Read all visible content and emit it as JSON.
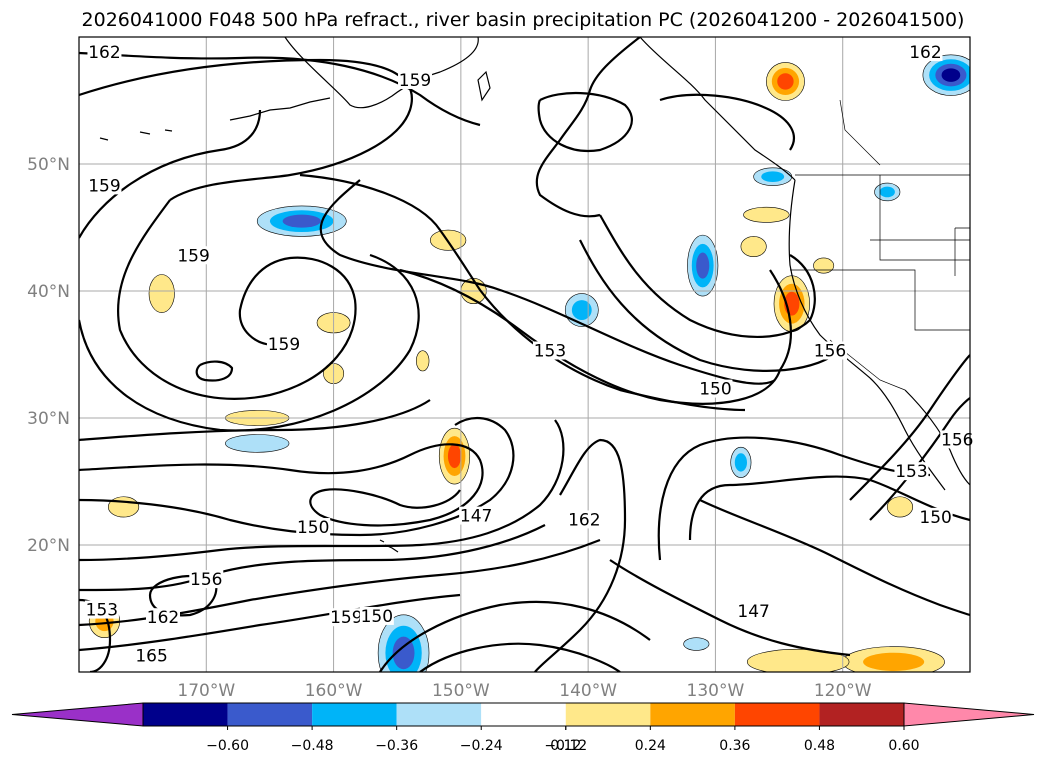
{
  "chart_data": {
    "type": "map-contour",
    "title": "2026041000 F048 500 hPa refract., river basin precipitation PC (2026041200 - 2026041500)",
    "longitude_range": [
      -180,
      -110
    ],
    "latitude_range": [
      10,
      60
    ],
    "longitude_ticks": [
      {
        "value": -170,
        "label": "170°W"
      },
      {
        "value": -160,
        "label": "160°W"
      },
      {
        "value": -150,
        "label": "150°W"
      },
      {
        "value": -140,
        "label": "140°W"
      },
      {
        "value": -130,
        "label": "130°W"
      },
      {
        "value": -120,
        "label": "120°W"
      }
    ],
    "latitude_ticks": [
      {
        "value": 20,
        "label": "20°N"
      },
      {
        "value": 30,
        "label": "30°N"
      },
      {
        "value": 40,
        "label": "40°N"
      },
      {
        "value": 50,
        "label": "50°N"
      }
    ],
    "contour_labels": [
      {
        "text": "162",
        "lon": -178.0,
        "lat": 58.5
      },
      {
        "text": "159",
        "lon": -153.6,
        "lat": 56.3
      },
      {
        "text": "159",
        "lon": -178.0,
        "lat": 48.0
      },
      {
        "text": "159",
        "lon": -171.0,
        "lat": 42.5
      },
      {
        "text": "159",
        "lon": -163.9,
        "lat": 35.5
      },
      {
        "text": "153",
        "lon": -143.0,
        "lat": 35.0
      },
      {
        "text": "150",
        "lon": -130.0,
        "lat": 32.0
      },
      {
        "text": "156",
        "lon": -121.0,
        "lat": 35.0
      },
      {
        "text": "153",
        "lon": -114.6,
        "lat": 25.5
      },
      {
        "text": "156",
        "lon": -111.0,
        "lat": 28.0
      },
      {
        "text": "150",
        "lon": -112.7,
        "lat": 21.9
      },
      {
        "text": "147",
        "lon": -148.8,
        "lat": 22.0
      },
      {
        "text": "162",
        "lon": -140.3,
        "lat": 21.7
      },
      {
        "text": "150",
        "lon": -161.6,
        "lat": 21.1
      },
      {
        "text": "156",
        "lon": -170.0,
        "lat": 17.0
      },
      {
        "text": "162",
        "lon": -173.4,
        "lat": 14.0
      },
      {
        "text": "165",
        "lon": -174.3,
        "lat": 11.0
      },
      {
        "text": "153",
        "lon": -178.2,
        "lat": 14.6
      },
      {
        "text": "159",
        "lon": -159.0,
        "lat": 14.0
      },
      {
        "text": "150",
        "lon": -156.6,
        "lat": 14.1
      },
      {
        "text": "147",
        "lon": -127.0,
        "lat": 14.5
      },
      {
        "text": "162",
        "lon": -113.5,
        "lat": 58.5
      }
    ],
    "colorbar": {
      "ticks": [
        "−0.60",
        "−0.48",
        "−0.36",
        "−0.24",
        "−0.12",
        "0.12",
        "0.24",
        "0.36",
        "0.48",
        "0.60"
      ],
      "extend": "both",
      "under_color": "#9a30c8",
      "over_color": "#ff88aa",
      "bins": [
        {
          "from": -0.6,
          "to": -0.48,
          "color": "#00008b"
        },
        {
          "from": -0.48,
          "to": -0.36,
          "color": "#3a5acc"
        },
        {
          "from": -0.36,
          "to": -0.24,
          "color": "#00b4f8"
        },
        {
          "from": -0.24,
          "to": -0.12,
          "color": "#aee0f8"
        },
        {
          "from": -0.12,
          "to": 0.12,
          "color": "#ffffff"
        },
        {
          "from": 0.12,
          "to": 0.24,
          "color": "#ffe88a"
        },
        {
          "from": 0.24,
          "to": 0.36,
          "color": "#ffa500"
        },
        {
          "from": 0.36,
          "to": 0.48,
          "color": "#ff4500"
        },
        {
          "from": 0.48,
          "to": 0.6,
          "color": "#b22222"
        }
      ]
    },
    "precip_blobs": [
      {
        "lon": -162.5,
        "lat": 45.5,
        "rx": 3.5,
        "ry": 1.2,
        "cls": -0.48
      },
      {
        "lon": -154.5,
        "lat": 11.5,
        "rx": 2.0,
        "ry": 3.0,
        "cls": -0.48
      },
      {
        "lon": -131.0,
        "lat": 42.0,
        "rx": 1.2,
        "ry": 2.4,
        "cls": -0.48
      },
      {
        "lon": -111.5,
        "lat": 57.0,
        "rx": 2.2,
        "ry": 1.6,
        "cls": -0.6
      },
      {
        "lon": -166.0,
        "lat": 28.0,
        "rx": 2.5,
        "ry": 0.7,
        "cls": -0.24
      },
      {
        "lon": -140.5,
        "lat": 38.5,
        "rx": 1.3,
        "ry": 1.3,
        "cls": -0.36
      },
      {
        "lon": -125.5,
        "lat": 49.0,
        "rx": 1.5,
        "ry": 0.7,
        "cls": -0.36
      },
      {
        "lon": -116.5,
        "lat": 47.8,
        "rx": 1.0,
        "ry": 0.7,
        "cls": -0.36
      },
      {
        "lon": -128.0,
        "lat": 26.5,
        "rx": 0.8,
        "ry": 1.2,
        "cls": -0.36
      },
      {
        "lon": -131.5,
        "lat": 12.2,
        "rx": 1.0,
        "ry": 0.5,
        "cls": -0.24
      },
      {
        "lon": -124.5,
        "lat": 56.5,
        "rx": 1.5,
        "ry": 1.5,
        "cls": 0.48
      },
      {
        "lon": -124.0,
        "lat": 39.0,
        "rx": 1.4,
        "ry": 2.2,
        "cls": 0.48
      },
      {
        "lon": -150.5,
        "lat": 27.0,
        "rx": 1.2,
        "ry": 2.2,
        "cls": 0.48
      },
      {
        "lon": -116.0,
        "lat": 10.8,
        "rx": 4.0,
        "ry": 1.2,
        "cls": 0.36
      },
      {
        "lon": -173.5,
        "lat": 39.8,
        "rx": 1.0,
        "ry": 1.5,
        "cls": 0.24
      },
      {
        "lon": -176.5,
        "lat": 23.0,
        "rx": 1.2,
        "ry": 0.8,
        "cls": 0.24
      },
      {
        "lon": -178.0,
        "lat": 14.0,
        "rx": 1.2,
        "ry": 1.3,
        "cls": 0.36
      },
      {
        "lon": -166.0,
        "lat": 30.0,
        "rx": 2.5,
        "ry": 0.6,
        "cls": 0.24
      },
      {
        "lon": -151.0,
        "lat": 44.0,
        "rx": 1.4,
        "ry": 0.8,
        "cls": 0.24
      },
      {
        "lon": -149.0,
        "lat": 40.0,
        "rx": 1.0,
        "ry": 1.0,
        "cls": 0.24
      },
      {
        "lon": -160.0,
        "lat": 37.5,
        "rx": 1.3,
        "ry": 0.8,
        "cls": 0.24
      },
      {
        "lon": -160.0,
        "lat": 33.5,
        "rx": 0.8,
        "ry": 0.8,
        "cls": 0.24
      },
      {
        "lon": -126.0,
        "lat": 46.0,
        "rx": 1.8,
        "ry": 0.6,
        "cls": 0.24
      },
      {
        "lon": -127.0,
        "lat": 43.5,
        "rx": 1.0,
        "ry": 0.8,
        "cls": 0.24
      },
      {
        "lon": -121.5,
        "lat": 42.0,
        "rx": 0.8,
        "ry": 0.6,
        "cls": 0.24
      },
      {
        "lon": -123.5,
        "lat": 10.8,
        "rx": 4.0,
        "ry": 1.0,
        "cls": 0.24
      },
      {
        "lon": -115.5,
        "lat": 23.0,
        "rx": 1.0,
        "ry": 0.8,
        "cls": 0.24
      },
      {
        "lon": -153.0,
        "lat": 34.5,
        "rx": 0.5,
        "ry": 0.8,
        "cls": 0.24
      }
    ]
  }
}
